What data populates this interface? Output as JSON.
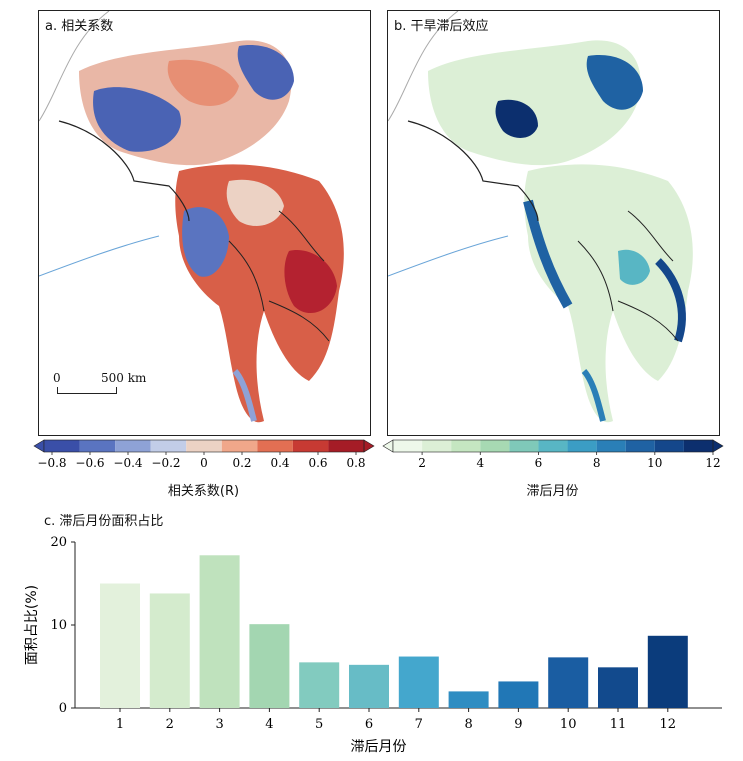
{
  "panels": {
    "a": {
      "title": "a. 相关系数"
    },
    "b": {
      "title": "b. 干旱滞后效应"
    }
  },
  "scalebar": {
    "zero": "0",
    "label": "500 km"
  },
  "colorbar_a": {
    "ticks": [
      "−0.8",
      "−0.6",
      "−0.4",
      "−0.2",
      "0",
      "0.2",
      "0.4",
      "0.6",
      "0.8"
    ],
    "colors": [
      "#3a4fa8",
      "#5a74c0",
      "#8ea2d6",
      "#c2cde8",
      "#ecd2c4",
      "#f0a78a",
      "#e26f53",
      "#c73a33",
      "#a51c26"
    ],
    "label": "相关系数(R)"
  },
  "colorbar_b": {
    "ticks": [
      "2",
      "4",
      "6",
      "8",
      "10",
      "12"
    ],
    "colors": [
      "#eef8ea",
      "#dcefd6",
      "#c5e6c1",
      "#a7d9b3",
      "#7fc9b9",
      "#58b6c4",
      "#3b9dc4",
      "#2a7fb7",
      "#1f62a3",
      "#14478b",
      "#0c2f6e"
    ],
    "label": "滞后月份"
  },
  "chart_data": {
    "type": "bar",
    "title": "c. 滞后月份面积占比",
    "categories": [
      "1",
      "2",
      "3",
      "4",
      "5",
      "6",
      "7",
      "8",
      "9",
      "10",
      "11",
      "12"
    ],
    "values": [
      15.0,
      13.8,
      18.4,
      10.1,
      5.5,
      5.2,
      6.2,
      2.0,
      3.2,
      6.1,
      4.9,
      8.7
    ],
    "colors": [
      "#e3f1dc",
      "#d4ebcd",
      "#bfe2bd",
      "#a3d6b1",
      "#82cbbf",
      "#67bcc6",
      "#44a7cd",
      "#2f8dc2",
      "#2177b6",
      "#1a5da2",
      "#124a8d",
      "#0b3c7c"
    ],
    "xlabel": "滞后月份",
    "ylabel": "面积占比(%)",
    "ylim": [
      0,
      20
    ],
    "yticks": [
      "0",
      "10",
      "20"
    ]
  }
}
